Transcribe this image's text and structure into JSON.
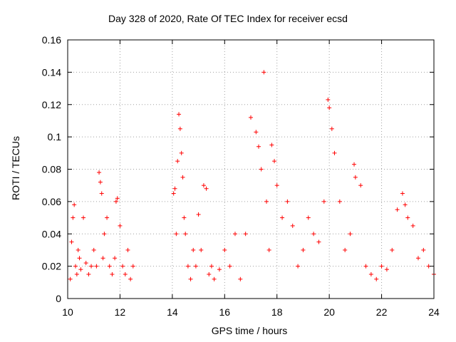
{
  "chart_data": {
    "type": "scatter",
    "title": "Day 328 of 2020, Rate Of TEC Index for receiver ecsd",
    "xlabel": "GPS time / hours",
    "ylabel": "ROTI / TECUs",
    "xlim": [
      10,
      24
    ],
    "ylim": [
      0,
      0.16
    ],
    "xticks": [
      "10",
      "12",
      "14",
      "16",
      "18",
      "20",
      "22",
      "24"
    ],
    "yticks": [
      "0",
      "0.02",
      "0.04",
      "0.06",
      "0.08",
      "0.1",
      "0.12",
      "0.14",
      "0.16"
    ],
    "grid": true,
    "marker": "+",
    "color": "#ff0000",
    "series": [
      {
        "name": "ROTI",
        "x": [
          10.1,
          10.15,
          10.2,
          10.25,
          10.3,
          10.35,
          10.4,
          10.45,
          10.5,
          10.6,
          10.7,
          10.8,
          10.9,
          11.0,
          11.1,
          11.2,
          11.25,
          11.3,
          11.35,
          11.4,
          11.5,
          11.6,
          11.7,
          11.8,
          11.85,
          11.9,
          12.0,
          12.1,
          12.2,
          12.3,
          12.4,
          12.5,
          14.05,
          14.1,
          14.15,
          14.2,
          14.25,
          14.3,
          14.35,
          14.4,
          14.45,
          14.5,
          14.6,
          14.7,
          14.8,
          14.9,
          15.0,
          15.1,
          15.2,
          15.3,
          15.4,
          15.5,
          15.6,
          15.8,
          16.0,
          16.2,
          16.4,
          16.6,
          16.8,
          17.0,
          17.2,
          17.3,
          17.4,
          17.5,
          17.6,
          17.7,
          17.8,
          17.9,
          18.0,
          18.2,
          18.4,
          18.6,
          18.8,
          19.0,
          19.2,
          19.4,
          19.6,
          19.8,
          19.95,
          20.0,
          20.1,
          20.2,
          20.4,
          20.6,
          20.8,
          20.95,
          21.0,
          21.2,
          21.4,
          21.6,
          21.8,
          22.0,
          22.2,
          22.4,
          22.6,
          22.8,
          22.9,
          23.0,
          23.2,
          23.4,
          23.6,
          23.8,
          24.0
        ],
        "y": [
          0.012,
          0.035,
          0.05,
          0.058,
          0.02,
          0.015,
          0.03,
          0.025,
          0.018,
          0.05,
          0.022,
          0.015,
          0.02,
          0.03,
          0.02,
          0.078,
          0.072,
          0.065,
          0.025,
          0.04,
          0.05,
          0.02,
          0.015,
          0.025,
          0.06,
          0.062,
          0.045,
          0.02,
          0.015,
          0.03,
          0.012,
          0.02,
          0.065,
          0.068,
          0.04,
          0.085,
          0.114,
          0.105,
          0.09,
          0.075,
          0.05,
          0.04,
          0.02,
          0.012,
          0.03,
          0.02,
          0.052,
          0.03,
          0.07,
          0.068,
          0.015,
          0.02,
          0.012,
          0.018,
          0.03,
          0.02,
          0.04,
          0.012,
          0.04,
          0.112,
          0.103,
          0.094,
          0.08,
          0.14,
          0.06,
          0.03,
          0.095,
          0.085,
          0.07,
          0.05,
          0.06,
          0.045,
          0.02,
          0.03,
          0.05,
          0.04,
          0.035,
          0.06,
          0.123,
          0.118,
          0.105,
          0.09,
          0.06,
          0.03,
          0.04,
          0.083,
          0.075,
          0.07,
          0.02,
          0.015,
          0.012,
          0.02,
          0.018,
          0.03,
          0.055,
          0.065,
          0.058,
          0.05,
          0.045,
          0.025,
          0.03,
          0.02,
          0.015
        ]
      }
    ]
  }
}
